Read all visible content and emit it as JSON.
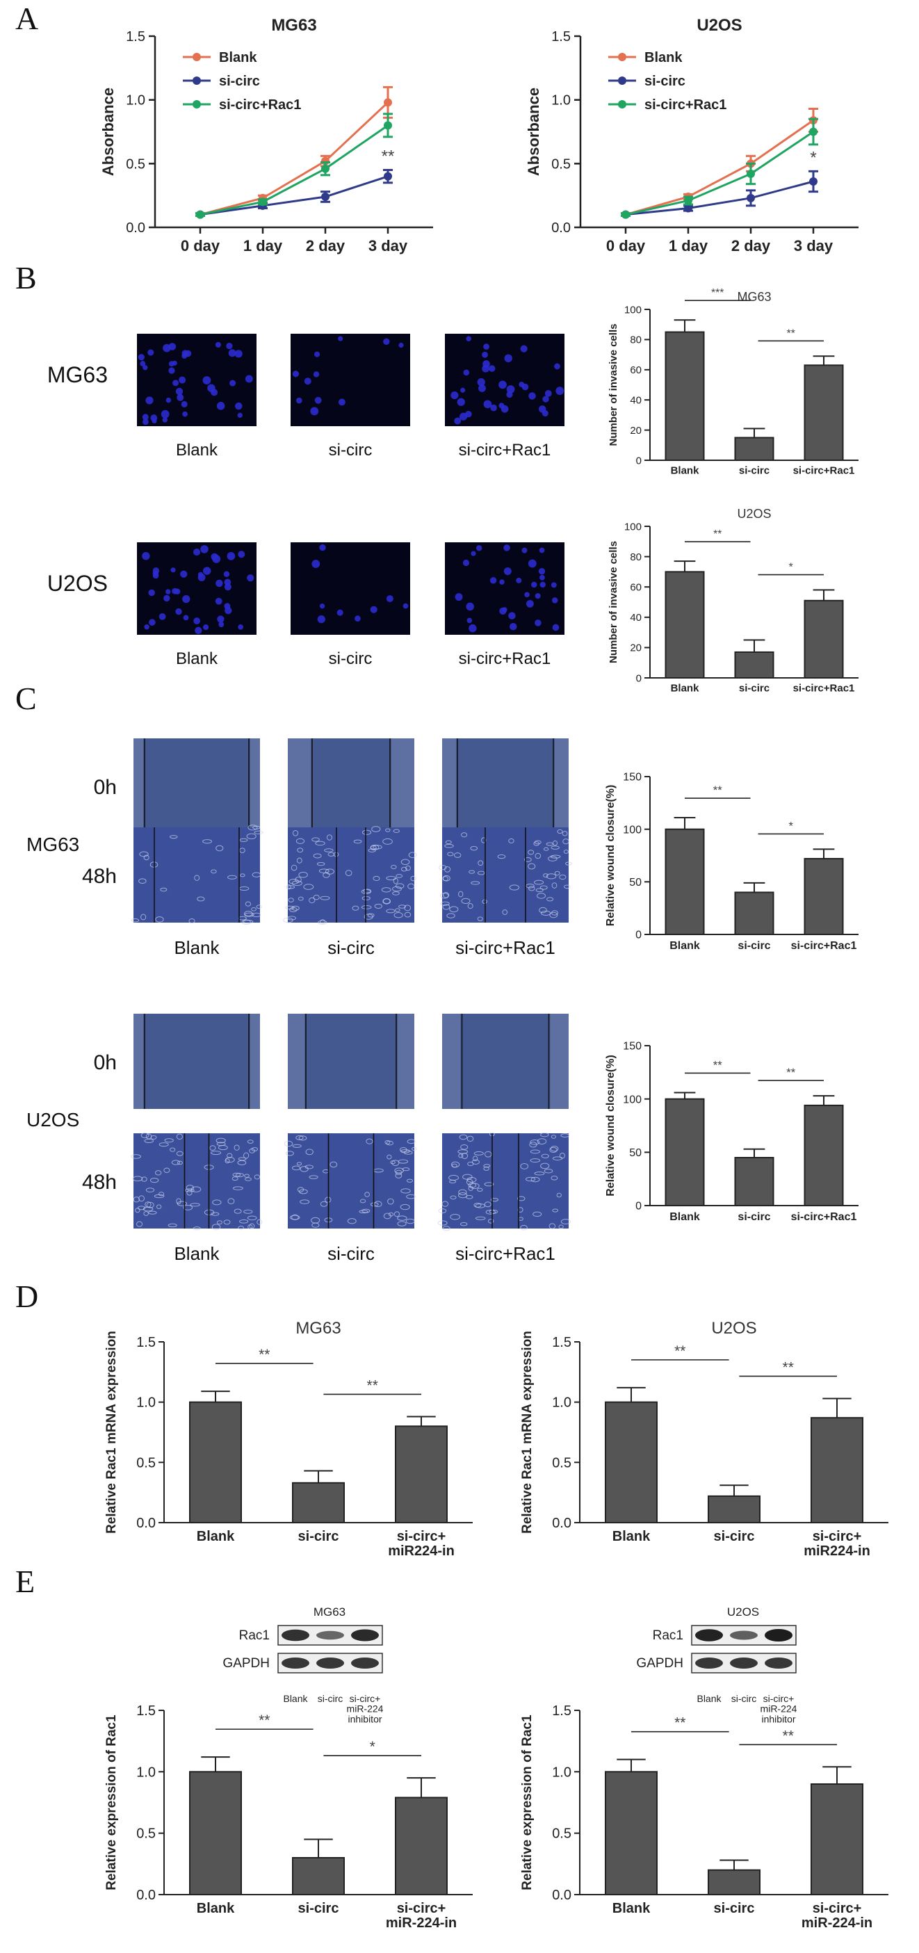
{
  "panel_labels": {
    "A": "A",
    "B": "B",
    "C": "C",
    "D": "D",
    "E": "E"
  },
  "colors": {
    "blank": "#e3704f",
    "sicirc": "#2f3a8a",
    "rac1": "#1fa462",
    "bar": "#555555",
    "micro_bg": "#05051a",
    "cell": "#2b2bd0"
  },
  "chart_data": [
    {
      "id": "A_MG63",
      "type": "line",
      "title": "MG63",
      "ylabel": "Absorbance",
      "categories": [
        "0 day",
        "1 day",
        "2 day",
        "3 day"
      ],
      "ylim": [
        0,
        1.5
      ],
      "yticks": [
        0,
        0.5,
        1.0,
        1.5
      ],
      "ytick_labels": [
        "0.0",
        "0.5",
        "1.0",
        "1.5"
      ],
      "series": [
        {
          "name": "Blank",
          "color": "#e3704f",
          "values": [
            0.1,
            0.23,
            0.52,
            0.98
          ],
          "err": [
            0.01,
            0.02,
            0.04,
            0.12
          ]
        },
        {
          "name": "si-circ",
          "color": "#2f3a8a",
          "values": [
            0.1,
            0.17,
            0.24,
            0.4
          ],
          "err": [
            0.01,
            0.02,
            0.04,
            0.05
          ]
        },
        {
          "name": "si-circ+Rac1",
          "color": "#1fa462",
          "values": [
            0.1,
            0.2,
            0.46,
            0.8
          ],
          "err": [
            0.01,
            0.02,
            0.05,
            0.09
          ]
        }
      ],
      "sig": "**",
      "legend": "top-left"
    },
    {
      "id": "A_U2OS",
      "type": "line",
      "title": "U2OS",
      "ylabel": "Absorbance",
      "categories": [
        "0 day",
        "1 day",
        "2 day",
        "3 day"
      ],
      "ylim": [
        0,
        1.5
      ],
      "yticks": [
        0,
        0.5,
        1.0,
        1.5
      ],
      "ytick_labels": [
        "0.0",
        "0.5",
        "1.0",
        "1.5"
      ],
      "series": [
        {
          "name": "Blank",
          "color": "#e3704f",
          "values": [
            0.1,
            0.24,
            0.5,
            0.84
          ],
          "err": [
            0.01,
            0.02,
            0.06,
            0.09
          ]
        },
        {
          "name": "si-circ",
          "color": "#2f3a8a",
          "values": [
            0.1,
            0.15,
            0.23,
            0.36
          ],
          "err": [
            0.01,
            0.02,
            0.06,
            0.08
          ]
        },
        {
          "name": "si-circ+Rac1",
          "color": "#1fa462",
          "values": [
            0.1,
            0.21,
            0.42,
            0.75
          ],
          "err": [
            0.01,
            0.03,
            0.08,
            0.1
          ]
        }
      ],
      "sig": "*",
      "legend": "top-left"
    },
    {
      "id": "B_MG63",
      "type": "bar",
      "title": "MG63",
      "ylabel": "Number of invasive cells",
      "categories": [
        "Blank",
        "si-circ",
        "si-circ+Rac1"
      ],
      "values": [
        85,
        15,
        63
      ],
      "err": [
        8,
        6,
        6
      ],
      "ylim": [
        0,
        100
      ],
      "yticks": [
        0,
        20,
        40,
        60,
        80,
        100
      ],
      "ytick_labels": [
        "0",
        "20",
        "40",
        "60",
        "80",
        "100"
      ],
      "brackets": [
        {
          "from": 0,
          "to": 1,
          "label": "***"
        },
        {
          "from": 1,
          "to": 2,
          "label": "**"
        }
      ]
    },
    {
      "id": "B_U2OS",
      "type": "bar",
      "title": "U2OS",
      "ylabel": "Number of invasive cells",
      "categories": [
        "Blank",
        "si-circ",
        "si-circ+Rac1"
      ],
      "values": [
        70,
        17,
        51
      ],
      "err": [
        7,
        8,
        7
      ],
      "ylim": [
        0,
        100
      ],
      "yticks": [
        0,
        20,
        40,
        60,
        80,
        100
      ],
      "ytick_labels": [
        "0",
        "20",
        "40",
        "60",
        "80",
        "100"
      ],
      "brackets": [
        {
          "from": 0,
          "to": 1,
          "label": "**"
        },
        {
          "from": 1,
          "to": 2,
          "label": "*"
        }
      ]
    },
    {
      "id": "C_MG63",
      "type": "bar",
      "title": "",
      "ylabel": "Relative wound closure(%)",
      "categories": [
        "Blank",
        "si-circ",
        "si-circ+Rac1"
      ],
      "values": [
        100,
        40,
        72
      ],
      "err": [
        11,
        9,
        9
      ],
      "ylim": [
        0,
        150
      ],
      "yticks": [
        0,
        50,
        100,
        150
      ],
      "ytick_labels": [
        "0",
        "50",
        "100",
        "150"
      ],
      "brackets": [
        {
          "from": 0,
          "to": 1,
          "label": "**"
        },
        {
          "from": 1,
          "to": 2,
          "label": "*"
        }
      ]
    },
    {
      "id": "C_U2OS",
      "type": "bar",
      "title": "",
      "ylabel": "Relative wound closure(%)",
      "categories": [
        "Blank",
        "si-circ",
        "si-circ+Rac1"
      ],
      "values": [
        100,
        45,
        94
      ],
      "err": [
        6,
        8,
        9
      ],
      "ylim": [
        0,
        150
      ],
      "yticks": [
        0,
        50,
        100,
        150
      ],
      "ytick_labels": [
        "0",
        "50",
        "100",
        "150"
      ],
      "brackets": [
        {
          "from": 0,
          "to": 1,
          "label": "**"
        },
        {
          "from": 1,
          "to": 2,
          "label": "**"
        }
      ]
    },
    {
      "id": "D_MG63",
      "type": "bar",
      "title": "MG63",
      "ylabel": "Relative Rac1 mRNA expression",
      "categories": [
        "Blank",
        "si-circ",
        "si-circ+\nmiR224-in"
      ],
      "values": [
        1.0,
        0.33,
        0.8
      ],
      "err": [
        0.09,
        0.1,
        0.08
      ],
      "ylim": [
        0,
        1.5
      ],
      "yticks": [
        0,
        0.5,
        1.0,
        1.5
      ],
      "ytick_labels": [
        "0.0",
        "0.5",
        "1.0",
        "1.5"
      ],
      "brackets": [
        {
          "from": 0,
          "to": 1,
          "label": "**"
        },
        {
          "from": 1,
          "to": 2,
          "label": "**"
        }
      ]
    },
    {
      "id": "D_U2OS",
      "type": "bar",
      "title": "U2OS",
      "ylabel": "Relative Rac1 mRNA expression",
      "categories": [
        "Blank",
        "si-circ",
        "si-circ+\nmiR224-in"
      ],
      "values": [
        1.0,
        0.22,
        0.87
      ],
      "err": [
        0.12,
        0.09,
        0.16
      ],
      "ylim": [
        0,
        1.5
      ],
      "yticks": [
        0,
        0.5,
        1.0,
        1.5
      ],
      "ytick_labels": [
        "0.0",
        "0.5",
        "1.0",
        "1.5"
      ],
      "brackets": [
        {
          "from": 0,
          "to": 1,
          "label": "**"
        },
        {
          "from": 1,
          "to": 2,
          "label": "**"
        }
      ]
    },
    {
      "id": "E_MG63",
      "type": "bar",
      "title": "",
      "ylabel": "Relative expression of Rac1",
      "categories": [
        "Blank",
        "si-circ",
        "si-circ+\nmiR-224-in"
      ],
      "values": [
        1.0,
        0.3,
        0.79
      ],
      "err": [
        0.12,
        0.15,
        0.16
      ],
      "ylim": [
        0,
        1.5
      ],
      "yticks": [
        0,
        0.5,
        1.0,
        1.5
      ],
      "ytick_labels": [
        "0.0",
        "0.5",
        "1.0",
        "1.5"
      ],
      "brackets": [
        {
          "from": 0,
          "to": 1,
          "label": "**"
        },
        {
          "from": 1,
          "to": 2,
          "label": "*"
        }
      ]
    },
    {
      "id": "E_U2OS",
      "type": "bar",
      "title": "",
      "ylabel": "Relative expression of Rac1",
      "categories": [
        "Blank",
        "si-circ",
        "si-circ+\nmiR-224-in"
      ],
      "values": [
        1.0,
        0.2,
        0.9
      ],
      "err": [
        0.1,
        0.08,
        0.14
      ],
      "ylim": [
        0,
        1.5
      ],
      "yticks": [
        0,
        0.5,
        1.0,
        1.5
      ],
      "ytick_labels": [
        "0.0",
        "0.5",
        "1.0",
        "1.5"
      ],
      "brackets": [
        {
          "from": 0,
          "to": 1,
          "label": "**"
        },
        {
          "from": 1,
          "to": 2,
          "label": "**"
        }
      ]
    }
  ],
  "panelB": {
    "rows": [
      {
        "label": "MG63",
        "cells": [
          38,
          11,
          33
        ]
      },
      {
        "label": "U2OS",
        "cells": [
          40,
          9,
          30
        ]
      }
    ],
    "col_labels": [
      "Blank",
      "si-circ",
      "si-circ+Rac1"
    ]
  },
  "panelC": {
    "groups": [
      {
        "label": "MG63"
      },
      {
        "label": "U2OS"
      }
    ],
    "time_labels": [
      "0h",
      "48h"
    ],
    "col_labels": [
      "Blank",
      "si-circ",
      "si-circ+Rac1"
    ]
  },
  "panelE_blots": [
    {
      "title": "MG63",
      "bands": [
        "Rac1",
        "GAPDH"
      ],
      "lanes": [
        "Blank",
        "si-circ",
        "si-circ+\nmiR-224\ninhibitor"
      ],
      "rac1_intensity": [
        0.85,
        0.45,
        0.9
      ]
    },
    {
      "title": "U2OS",
      "bands": [
        "Rac1",
        "GAPDH"
      ],
      "lanes": [
        "Blank",
        "si-circ",
        "si-circ+\nmiR-224\ninhibitor"
      ],
      "rac1_intensity": [
        0.95,
        0.5,
        1.0
      ]
    }
  ]
}
